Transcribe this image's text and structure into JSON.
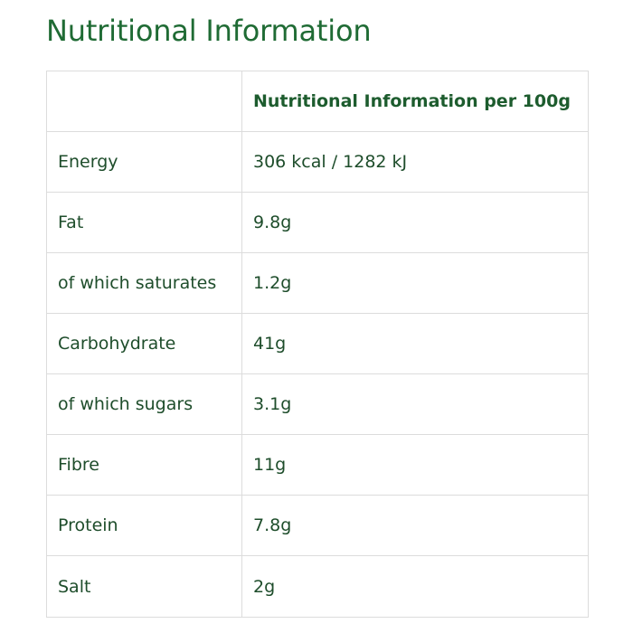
{
  "page": {
    "title": "Nutritional Information"
  },
  "table": {
    "headers": [
      "",
      "Nutritional Information per 100g"
    ],
    "rows": [
      {
        "nutrient": "Energy",
        "value": "306 kcal / 1282 kJ"
      },
      {
        "nutrient": "Fat",
        "value": "9.8g"
      },
      {
        "nutrient": "of which saturates",
        "value": "1.2g"
      },
      {
        "nutrient": "Carbohydrate",
        "value": "41g"
      },
      {
        "nutrient": "of which sugars",
        "value": "3.1g"
      },
      {
        "nutrient": "Fibre",
        "value": "11g"
      },
      {
        "nutrient": "Protein",
        "value": "7.8g"
      },
      {
        "nutrient": "Salt",
        "value": "2g"
      }
    ]
  },
  "colors": {
    "title": "#1f6b34",
    "text": "#1e4d2b",
    "border": "#dcdcdc"
  }
}
